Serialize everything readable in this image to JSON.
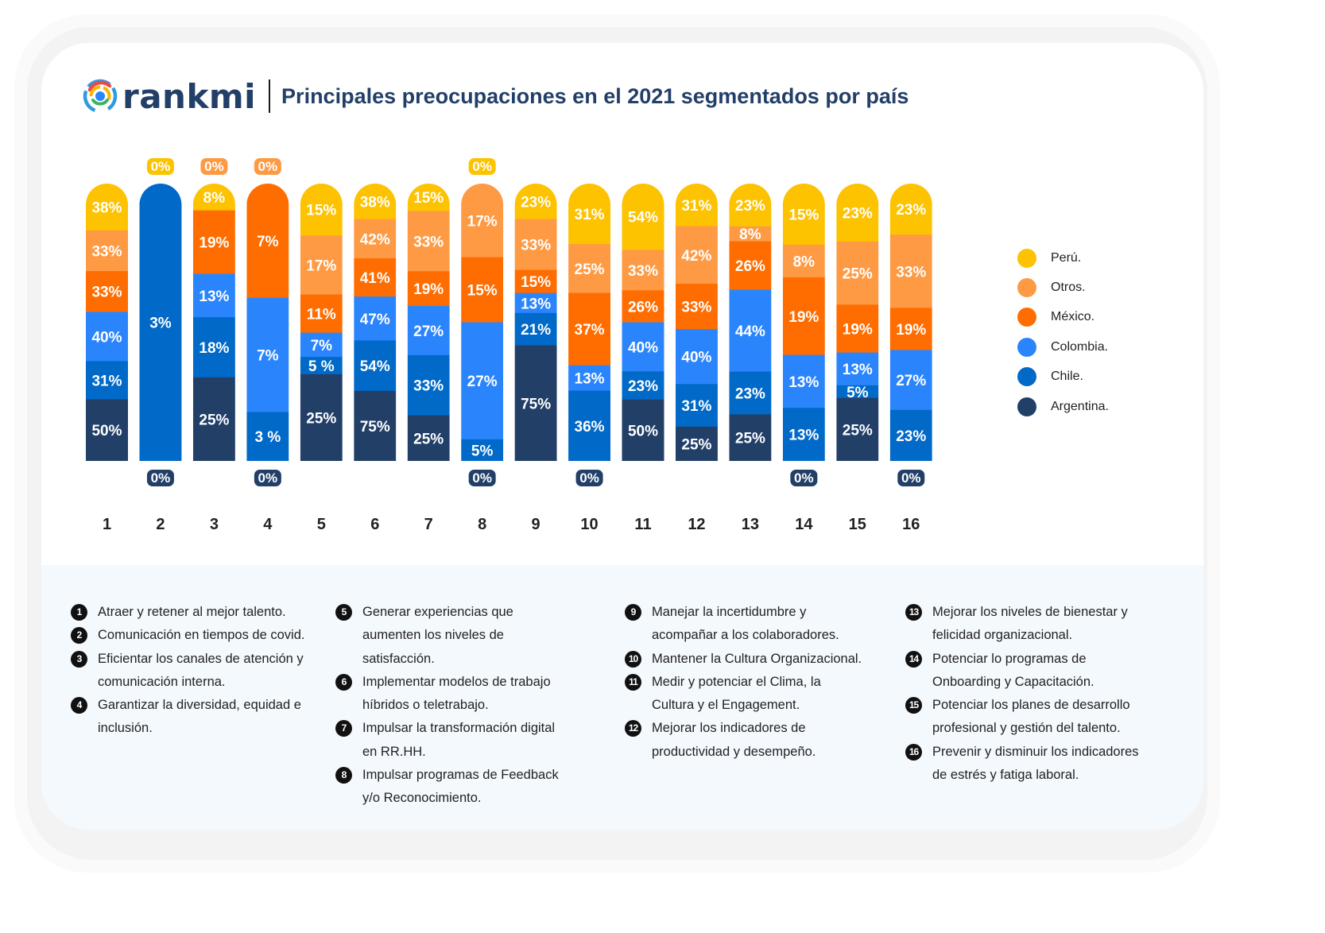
{
  "brand": {
    "name": "rankmi"
  },
  "header": {
    "title": "Principales preocupaciones en el 2021 segmentados por país"
  },
  "colors": {
    "Perú": "#fdc200",
    "Otros": "#fe9a44",
    "México": "#ff6d00",
    "Colombia": "#2a85fd",
    "Chile": "#0169c8",
    "Argentina": "#223f68"
  },
  "chart_data": {
    "type": "bar",
    "stacked": true,
    "title": "Principales preocupaciones en el 2021 segmentados por país",
    "xlabel": "",
    "ylabel": "",
    "categories": [
      "1",
      "2",
      "3",
      "4",
      "5",
      "6",
      "7",
      "8",
      "9",
      "10",
      "11",
      "12",
      "13",
      "14",
      "15",
      "16"
    ],
    "legend_position": "right",
    "unit": "%",
    "series": [
      {
        "name": "Perú.",
        "key": "Perú",
        "values": [
          38,
          0,
          8,
          0,
          15,
          38,
          15,
          0,
          23,
          31,
          54,
          31,
          23,
          15,
          23,
          23
        ]
      },
      {
        "name": "Otros.",
        "key": "Otros",
        "values": [
          33,
          0,
          0,
          0,
          17,
          42,
          33,
          17,
          33,
          25,
          33,
          42,
          8,
          8,
          25,
          33
        ]
      },
      {
        "name": "México.",
        "key": "México",
        "values": [
          33,
          0,
          19,
          7,
          11,
          41,
          19,
          15,
          15,
          37,
          26,
          33,
          26,
          19,
          19,
          19
        ]
      },
      {
        "name": "Colombia.",
        "key": "Colombia",
        "values": [
          40,
          0,
          13,
          7,
          7,
          47,
          27,
          27,
          13,
          13,
          40,
          40,
          44,
          13,
          13,
          27
        ]
      },
      {
        "name": "Chile.",
        "key": "Chile",
        "values": [
          31,
          3,
          18,
          3,
          5,
          54,
          33,
          5,
          21,
          36,
          23,
          31,
          23,
          13,
          5,
          23
        ]
      },
      {
        "name": "Argentina.",
        "key": "Argentina",
        "values": [
          50,
          0,
          25,
          0,
          25,
          75,
          25,
          0,
          75,
          0,
          50,
          25,
          25,
          0,
          25,
          0
        ]
      }
    ],
    "segment_labels": {
      "4": {
        "Chile": "3 %"
      },
      "5": {
        "Chile": "5 %"
      }
    },
    "zero_badges_top": [
      {
        "category": "2",
        "series": "Perú",
        "label": "0%"
      },
      {
        "category": "3",
        "series": "Otros",
        "label": "0%"
      },
      {
        "category": "4",
        "series": "Otros",
        "label": "0%"
      },
      {
        "category": "8",
        "series": "Perú",
        "label": "0%"
      }
    ],
    "zero_badges_bottom": [
      {
        "category": "2",
        "series": "Argentina",
        "label": "0%"
      },
      {
        "category": "4",
        "series": "Argentina",
        "label": "0%"
      },
      {
        "category": "8",
        "series": "Argentina",
        "label": "0%"
      },
      {
        "category": "10",
        "series": "Argentina",
        "label": "0%"
      },
      {
        "category": "14",
        "series": "Argentina",
        "label": "0%"
      },
      {
        "category": "16",
        "series": "Argentina",
        "label": "0%"
      }
    ]
  },
  "legend": [
    {
      "label": "Perú.",
      "key": "Perú"
    },
    {
      "label": "Otros.",
      "key": "Otros"
    },
    {
      "label": "México.",
      "key": "México"
    },
    {
      "label": "Colombia.",
      "key": "Colombia"
    },
    {
      "label": "Chile.",
      "key": "Chile"
    },
    {
      "label": "Argentina.",
      "key": "Argentina"
    }
  ],
  "concerns": [
    {
      "num": "1",
      "text": "Atraer y retener al mejor talento."
    },
    {
      "num": "2",
      "text": "Comunicación en tiempos de covid."
    },
    {
      "num": "3",
      "text": "Eficientar los canales de atención y comunicación interna."
    },
    {
      "num": "4",
      "text": "Garantizar la diversidad, equidad e inclusión."
    },
    {
      "num": "5",
      "text": "Generar experiencias que aumenten los niveles de satisfacción."
    },
    {
      "num": "6",
      "text": "Implementar modelos de trabajo híbridos o teletrabajo."
    },
    {
      "num": "7",
      "text": "Impulsar la transformación digital en RR.HH."
    },
    {
      "num": "8",
      "text": "Impulsar programas de Feedback y/o Reconocimiento."
    },
    {
      "num": "9",
      "text": "Manejar la incertidumbre y acompañar a los colaboradores."
    },
    {
      "num": "10",
      "text": "Mantener la Cultura Organizacional."
    },
    {
      "num": "11",
      "text": "Medir y potenciar el Clima, la Cultura y el Engagement."
    },
    {
      "num": "12",
      "text": "Mejorar los indicadores de productividad y desempeño."
    },
    {
      "num": "13",
      "text": "Mejorar los niveles de bienestar y felicidad organizacional."
    },
    {
      "num": "14",
      "text": "Potenciar lo programas de Onboarding y Capacitación."
    },
    {
      "num": "15",
      "text": "Potenciar los planes de desarrollo profesional y gestión del talento."
    },
    {
      "num": "16",
      "text": "Prevenir y disminuir los indicadores de estrés y fatiga laboral."
    }
  ]
}
